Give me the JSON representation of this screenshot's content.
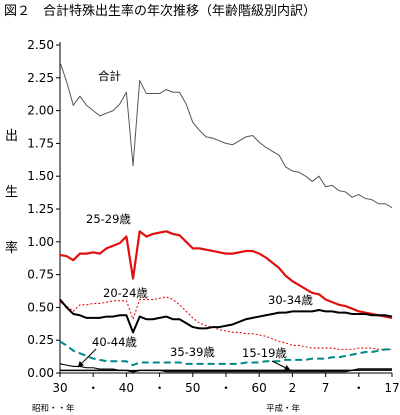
{
  "chart_data": {
    "type": "line",
    "title": "図２　合計特殊出生率の年次推移（年齢階級別内訳）",
    "ylabel_chars": [
      "出",
      "生",
      "率"
    ],
    "ylim": [
      0,
      2.5
    ],
    "yticks": [
      "2.50",
      "2.25",
      "2.00",
      "1.75",
      "1.50",
      "1.25",
      "1.00",
      "0.75",
      "0.50",
      "0.25",
      "0.00"
    ],
    "xticks": [
      "30",
      "・",
      "40",
      "・",
      "50",
      "・",
      "60",
      "2",
      "7",
      "・",
      "17"
    ],
    "x_era_labels": [
      "昭和・・年",
      "平成・年"
    ],
    "x": [
      1955,
      1956,
      1957,
      1958,
      1959,
      1960,
      1961,
      1962,
      1963,
      1964,
      1965,
      1966,
      1967,
      1968,
      1969,
      1970,
      1971,
      1972,
      1973,
      1974,
      1975,
      1976,
      1977,
      1978,
      1979,
      1980,
      1981,
      1982,
      1983,
      1984,
      1985,
      1986,
      1987,
      1988,
      1989,
      1990,
      1991,
      1992,
      1993,
      1994,
      1995,
      1996,
      1997,
      1998,
      1999,
      2000,
      2001,
      2002,
      2003,
      2004,
      2005
    ],
    "series": [
      {
        "name": "合計",
        "color": "#555555",
        "values": [
          2.37,
          2.22,
          2.04,
          2.11,
          2.04,
          2.0,
          1.96,
          1.98,
          2.0,
          2.05,
          2.14,
          1.58,
          2.23,
          2.13,
          2.13,
          2.13,
          2.16,
          2.14,
          2.14,
          2.05,
          1.91,
          1.85,
          1.8,
          1.79,
          1.77,
          1.75,
          1.74,
          1.77,
          1.8,
          1.81,
          1.76,
          1.72,
          1.69,
          1.66,
          1.57,
          1.54,
          1.53,
          1.5,
          1.46,
          1.5,
          1.42,
          1.43,
          1.39,
          1.38,
          1.34,
          1.36,
          1.33,
          1.32,
          1.29,
          1.29,
          1.26
        ]
      },
      {
        "name": "25-29歳",
        "color": "#e01010",
        "values": [
          0.9,
          0.89,
          0.86,
          0.91,
          0.91,
          0.92,
          0.91,
          0.95,
          0.97,
          0.99,
          1.04,
          0.72,
          1.08,
          1.04,
          1.06,
          1.07,
          1.08,
          1.06,
          1.05,
          1.0,
          0.95,
          0.95,
          0.94,
          0.93,
          0.92,
          0.91,
          0.91,
          0.92,
          0.93,
          0.93,
          0.91,
          0.88,
          0.84,
          0.8,
          0.74,
          0.7,
          0.67,
          0.64,
          0.61,
          0.6,
          0.56,
          0.54,
          0.52,
          0.51,
          0.49,
          0.47,
          0.46,
          0.45,
          0.44,
          0.43,
          0.42
        ]
      },
      {
        "name": "20-24歳",
        "color": "#e01010",
        "values": [
          0.54,
          0.51,
          0.47,
          0.52,
          0.52,
          0.53,
          0.53,
          0.54,
          0.55,
          0.55,
          0.55,
          0.41,
          0.56,
          0.56,
          0.56,
          0.57,
          0.58,
          0.56,
          0.52,
          0.47,
          0.42,
          0.38,
          0.36,
          0.35,
          0.33,
          0.32,
          0.31,
          0.31,
          0.3,
          0.3,
          0.29,
          0.28,
          0.26,
          0.24,
          0.23,
          0.21,
          0.21,
          0.2,
          0.19,
          0.19,
          0.19,
          0.19,
          0.18,
          0.18,
          0.18,
          0.19,
          0.19,
          0.19,
          0.18,
          0.18,
          0.18
        ]
      },
      {
        "name": "30-34歳",
        "color": "#000000",
        "values": [
          0.56,
          0.5,
          0.45,
          0.44,
          0.42,
          0.42,
          0.42,
          0.43,
          0.43,
          0.44,
          0.44,
          0.31,
          0.43,
          0.41,
          0.41,
          0.42,
          0.43,
          0.41,
          0.41,
          0.38,
          0.35,
          0.34,
          0.34,
          0.35,
          0.35,
          0.36,
          0.37,
          0.39,
          0.41,
          0.42,
          0.43,
          0.44,
          0.45,
          0.46,
          0.46,
          0.47,
          0.47,
          0.47,
          0.47,
          0.48,
          0.47,
          0.47,
          0.46,
          0.46,
          0.45,
          0.45,
          0.45,
          0.44,
          0.44,
          0.44,
          0.43
        ]
      },
      {
        "name": "35-39歳",
        "color": "#008888",
        "values": [
          0.24,
          0.21,
          0.17,
          0.15,
          0.13,
          0.11,
          0.1,
          0.09,
          0.09,
          0.09,
          0.09,
          0.06,
          0.08,
          0.08,
          0.08,
          0.08,
          0.08,
          0.08,
          0.08,
          0.07,
          0.07,
          0.07,
          0.07,
          0.07,
          0.07,
          0.07,
          0.07,
          0.07,
          0.08,
          0.08,
          0.08,
          0.09,
          0.09,
          0.09,
          0.1,
          0.1,
          0.1,
          0.1,
          0.11,
          0.11,
          0.11,
          0.12,
          0.12,
          0.13,
          0.14,
          0.15,
          0.16,
          0.16,
          0.17,
          0.18,
          0.18
        ]
      },
      {
        "name": "40-44歳",
        "color": "#000000",
        "values": [
          0.07,
          0.06,
          0.05,
          0.05,
          0.04,
          0.04,
          0.03,
          0.03,
          0.03,
          0.02,
          0.02,
          0.02,
          0.02,
          0.02,
          0.02,
          0.02,
          0.01,
          0.01,
          0.01,
          0.01,
          0.01,
          0.01,
          0.01,
          0.01,
          0.01,
          0.01,
          0.01,
          0.01,
          0.01,
          0.01,
          0.01,
          0.01,
          0.01,
          0.01,
          0.01,
          0.01,
          0.01,
          0.01,
          0.01,
          0.01,
          0.01,
          0.01,
          0.01,
          0.01,
          0.02,
          0.02,
          0.02,
          0.02,
          0.02,
          0.02,
          0.02
        ]
      },
      {
        "name": "15-19歳",
        "color": "#000000",
        "values": [
          0.02,
          0.02,
          0.02,
          0.02,
          0.02,
          0.02,
          0.02,
          0.02,
          0.02,
          0.02,
          0.02,
          0.01,
          0.02,
          0.02,
          0.02,
          0.02,
          0.02,
          0.02,
          0.02,
          0.02,
          0.02,
          0.02,
          0.02,
          0.02,
          0.02,
          0.02,
          0.02,
          0.02,
          0.02,
          0.02,
          0.02,
          0.02,
          0.02,
          0.02,
          0.02,
          0.02,
          0.02,
          0.02,
          0.02,
          0.02,
          0.02,
          0.02,
          0.02,
          0.02,
          0.02,
          0.03,
          0.03,
          0.03,
          0.03,
          0.03,
          0.03
        ]
      }
    ]
  }
}
